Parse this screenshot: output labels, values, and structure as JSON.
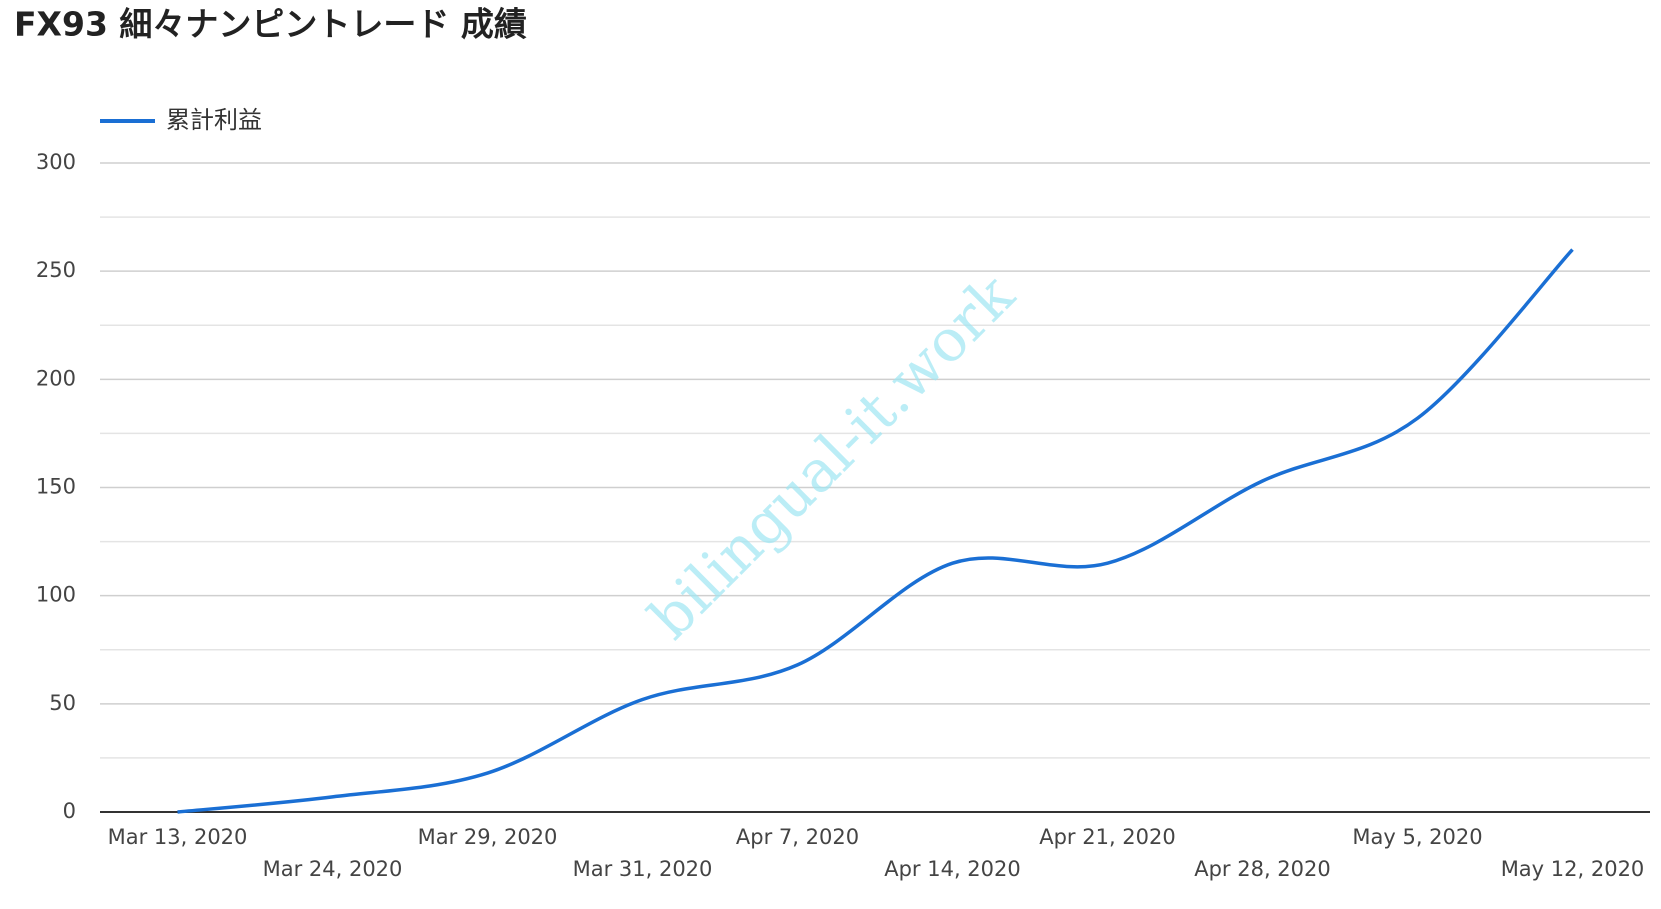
{
  "chart_data": {
    "type": "line",
    "title": "FX93 細々ナンピントレード 成績",
    "watermark": "bilingual-it.work",
    "categories": [
      "Mar 13, 2020",
      "Mar 24, 2020",
      "Mar 29, 2020",
      "Mar 31, 2020",
      "Apr 7, 2020",
      "Apr 14, 2020",
      "Apr 21, 2020",
      "Apr 28, 2020",
      "May 5, 2020",
      "May 12, 2020"
    ],
    "series": [
      {
        "name": "累計利益",
        "color": "#1a6fd4",
        "values": [
          0,
          7,
          18,
          52,
          68,
          115,
          115,
          153,
          182,
          260
        ]
      }
    ],
    "ylim": [
      0,
      300
    ],
    "yticks": [
      0,
      50,
      100,
      150,
      200,
      250,
      300
    ],
    "minor_yticks": [
      25,
      75,
      125,
      175,
      225,
      275
    ],
    "grid": true,
    "legend": "top-left",
    "smooth": true
  }
}
